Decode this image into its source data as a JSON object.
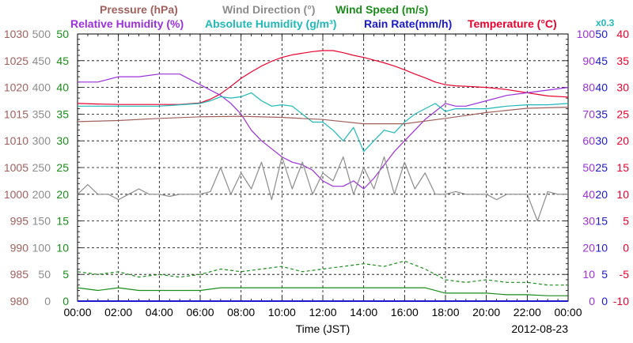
{
  "chart_data": {
    "type": "line",
    "date": "2012-08-23",
    "xlabel": "Time (JST)",
    "x_ticks": [
      "00:00",
      "02:00",
      "04:00",
      "06:00",
      "08:00",
      "10:00",
      "12:00",
      "14:00",
      "16:00",
      "18:00",
      "20:00",
      "22:00",
      "00:00"
    ],
    "x_range_hours": [
      0,
      24
    ],
    "grid": true,
    "legend_row1": [
      {
        "key": "pressure",
        "label": "Pressure (hPa)",
        "color": "#a0605c"
      },
      {
        "key": "wind_dir",
        "label": "Wind Direction (°)",
        "color": "#8c8c8c"
      },
      {
        "key": "wind_speed",
        "label": "Wind Speed (m/s)",
        "color": "#1a8c1a"
      }
    ],
    "legend_row2": [
      {
        "key": "rh",
        "label": "Relative Humidity (%)",
        "color": "#9b30d9"
      },
      {
        "key": "ah",
        "label": "Absolute Humidity (g/m³)",
        "color": "#1fb8b8"
      },
      {
        "key": "rain",
        "label": "Rain Rate(mm/h)",
        "color": "#1a1acc"
      },
      {
        "key": "temp",
        "label": "Temperature (°C)",
        "color": "#e8002d"
      }
    ],
    "ah_scale_note": "x0.3",
    "axes": {
      "pressure": {
        "range": [
          980,
          1030
        ],
        "ticks": [
          "1030",
          "1025",
          "1020",
          "1015",
          "1010",
          "1005",
          "1000",
          "995",
          "990",
          "985",
          "980"
        ],
        "color": "#a0605c"
      },
      "wind_dir": {
        "range": [
          0,
          500
        ],
        "ticks": [
          "500",
          "450",
          "400",
          "350",
          "300",
          "250",
          "200",
          "150",
          "100",
          "50",
          "0"
        ],
        "color": "#8c8c8c"
      },
      "wind_speed": {
        "range": [
          0,
          50
        ],
        "ticks": [
          "50",
          "45",
          "40",
          "35",
          "30",
          "25",
          "20",
          "15",
          "10",
          "5",
          "0"
        ],
        "color": "#1a8c1a"
      },
      "rh": {
        "range": [
          0,
          100
        ],
        "ticks": [
          "100",
          "90",
          "80",
          "70",
          "60",
          "50",
          "40",
          "30",
          "20",
          "10",
          "0"
        ],
        "color": "#9b30d9"
      },
      "rain": {
        "range": [
          0,
          50
        ],
        "ticks": [
          "50",
          "45",
          "40",
          "35",
          "30",
          "25",
          "20",
          "15",
          "10",
          "5",
          "0"
        ],
        "color": "#1a1acc"
      },
      "temp": {
        "range": [
          -10,
          40
        ],
        "ticks": [
          "40",
          "35",
          "30",
          "25",
          "20",
          "15",
          "10",
          "5",
          "0",
          "-5",
          "-10"
        ],
        "color": "#e8002d"
      }
    },
    "series": [
      {
        "key": "temp",
        "axis": "temp",
        "color": "#e8002d",
        "dash": "",
        "x": [
          0,
          1,
          2,
          3,
          4,
          5,
          6,
          6.5,
          7,
          7.5,
          8,
          8.5,
          9,
          9.5,
          10,
          10.5,
          11,
          11.5,
          12,
          12.5,
          13,
          13.5,
          14,
          14.5,
          15,
          15.5,
          16,
          16.5,
          17,
          17.5,
          18,
          18.5,
          19,
          20,
          21,
          22,
          23,
          24
        ],
        "y": [
          27,
          26.9,
          26.8,
          26.8,
          26.8,
          26.8,
          27.1,
          27.8,
          28.8,
          30.2,
          31.7,
          32.9,
          34,
          34.9,
          35.6,
          36.1,
          36.4,
          36.7,
          36.9,
          36.9,
          36.5,
          36,
          35.6,
          35.1,
          34.6,
          34,
          33.3,
          32.5,
          31.8,
          31,
          30.5,
          30.3,
          30.2,
          30,
          29.6,
          29,
          28.4,
          28.2
        ]
      },
      {
        "key": "rh",
        "axis": "rh",
        "color": "#9b30d9",
        "dash": "",
        "x": [
          0,
          1,
          2,
          3,
          4,
          5,
          6,
          6.5,
          7,
          7.5,
          8,
          8.5,
          9,
          9.5,
          10,
          10.5,
          11,
          11.5,
          12,
          12.5,
          13,
          13.5,
          14,
          14.5,
          15,
          15.5,
          16,
          16.5,
          17,
          17.5,
          18,
          18.5,
          19,
          20,
          21,
          22,
          23,
          24
        ],
        "y": [
          82,
          82,
          84,
          84,
          85,
          85,
          81,
          79,
          77,
          74,
          70,
          64,
          60,
          57,
          54,
          52,
          51,
          49,
          45,
          43,
          43,
          45,
          42,
          46,
          51,
          56,
          60,
          64,
          68,
          71,
          74,
          73,
          73,
          75,
          77,
          78,
          79,
          80
        ]
      },
      {
        "key": "ah",
        "axis": "rh",
        "color": "#1fb8b8",
        "dash": "",
        "x": [
          0,
          1,
          2,
          3,
          4,
          5,
          6,
          6.5,
          7,
          7.5,
          8,
          8.5,
          9,
          9.5,
          10,
          10.5,
          11,
          11.5,
          12,
          12.5,
          13,
          13.5,
          14,
          14.5,
          15,
          15.5,
          16,
          16.5,
          17,
          17.5,
          18,
          18.5,
          19,
          20,
          21,
          22,
          23,
          24
        ],
        "y": [
          73,
          73,
          73,
          73,
          73,
          73.5,
          74,
          75,
          76.5,
          76,
          76.5,
          78,
          75,
          73,
          73.5,
          73,
          70,
          67,
          67,
          64,
          60,
          65,
          56,
          60,
          64,
          63,
          67,
          70,
          72,
          74,
          71,
          72,
          72,
          72,
          73,
          73.5,
          73.5,
          74
        ]
      },
      {
        "key": "pressure",
        "axis": "pressure",
        "color": "#a0605c",
        "dash": "",
        "x": [
          0,
          2,
          4,
          6,
          8,
          10,
          12,
          14,
          16,
          18,
          20,
          22,
          24
        ],
        "y": [
          1013.6,
          1013.8,
          1014.2,
          1014.5,
          1014.6,
          1014.4,
          1014,
          1013.2,
          1013.2,
          1014.2,
          1015.3,
          1016.1,
          1016.3
        ]
      },
      {
        "key": "wind_dir",
        "axis": "wind_dir",
        "color": "#8c8c8c",
        "dash": "",
        "x": [
          0,
          0.5,
          1,
          1.5,
          2,
          2.5,
          3,
          3.5,
          4,
          4.5,
          5,
          5.5,
          6,
          6.5,
          7,
          7.5,
          8,
          8.5,
          9,
          9.5,
          10,
          10.5,
          11,
          11.5,
          12,
          12.5,
          13,
          13.5,
          14,
          14.5,
          15,
          15.5,
          16,
          16.5,
          17,
          17.5,
          18,
          18.5,
          19,
          19.5,
          20,
          20.5,
          21,
          21.5,
          22,
          22.5,
          23,
          23.5,
          24
        ],
        "y": [
          200,
          218,
          200,
          200,
          190,
          200,
          210,
          200,
          200,
          196,
          200,
          200,
          200,
          205,
          250,
          200,
          240,
          210,
          260,
          190,
          270,
          210,
          260,
          200,
          240,
          225,
          270,
          200,
          250,
          210,
          270,
          200,
          260,
          210,
          240,
          200,
          200,
          205,
          200,
          200,
          200,
          190,
          200,
          200,
          200,
          150,
          205,
          200,
          200
        ]
      },
      {
        "key": "wind_speed_max",
        "axis": "wind_speed",
        "color": "#1a8c1a",
        "dash": "4,3",
        "x": [
          0,
          1,
          2,
          3,
          4,
          5,
          6,
          7,
          8,
          9,
          10,
          11,
          12,
          13,
          14,
          15,
          16,
          17,
          18,
          19,
          20,
          21,
          22,
          23,
          24
        ],
        "y": [
          5.5,
          5,
          5.5,
          4.5,
          5,
          4.5,
          5,
          6,
          5.5,
          6,
          6.5,
          5.5,
          6,
          6.5,
          7,
          6.5,
          7.5,
          6,
          4,
          3.5,
          4,
          3.5,
          3.5,
          3,
          3
        ]
      },
      {
        "key": "wind_speed",
        "axis": "wind_speed",
        "color": "#1a8c1a",
        "dash": "",
        "x": [
          0,
          1,
          2,
          3,
          4,
          5,
          6,
          7,
          8,
          9,
          10,
          11,
          12,
          13,
          14,
          15,
          16,
          17,
          18,
          19,
          20,
          21,
          22,
          23,
          24
        ],
        "y": [
          2.5,
          2,
          2.5,
          2,
          2,
          2,
          2,
          2.5,
          2.5,
          2.5,
          2.5,
          2.5,
          2.5,
          2.5,
          2.5,
          2.5,
          2.5,
          2.5,
          1.5,
          1.5,
          1.5,
          1.2,
          1.2,
          1,
          1
        ]
      },
      {
        "key": "rain",
        "axis": "rain",
        "color": "#1a1acc",
        "dash": "",
        "x": [
          0,
          24
        ],
        "y": [
          0,
          0
        ]
      }
    ]
  }
}
